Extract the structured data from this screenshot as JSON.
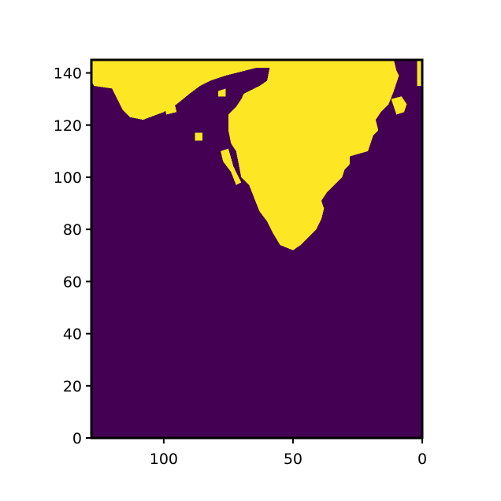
{
  "chart_data": {
    "type": "heatmap",
    "title": "",
    "xlabel": "",
    "ylabel": "",
    "xlim": [
      128,
      0
    ],
    "ylim": [
      0,
      145
    ],
    "x_inverted": true,
    "grid": false,
    "legend": "none",
    "xticks": [
      {
        "value": 100,
        "label": "100"
      },
      {
        "value": 50,
        "label": "50"
      },
      {
        "value": 0,
        "label": "0"
      }
    ],
    "yticks": [
      {
        "value": 0,
        "label": "0"
      },
      {
        "value": 20,
        "label": "20"
      },
      {
        "value": 40,
        "label": "40"
      },
      {
        "value": 60,
        "label": "60"
      },
      {
        "value": 80,
        "label": "80"
      },
      {
        "value": 100,
        "label": "100"
      },
      {
        "value": 120,
        "label": "120"
      },
      {
        "value": 140,
        "label": "140"
      }
    ],
    "colors": {
      "background": "#440154",
      "foreground": "#fde725",
      "axis": "#000000"
    },
    "regions": [
      {
        "name": "mainland",
        "outline": [
          [
            128,
            145
          ],
          [
            128,
            137
          ],
          [
            127,
            135
          ],
          [
            120,
            134
          ],
          [
            118,
            130
          ],
          [
            116,
            126
          ],
          [
            113,
            123
          ],
          [
            108,
            122
          ],
          [
            100,
            125
          ],
          [
            95,
            128
          ],
          [
            90,
            132
          ],
          [
            86,
            135
          ],
          [
            82,
            137
          ],
          [
            76,
            139
          ],
          [
            72,
            140
          ],
          [
            68,
            141
          ],
          [
            64,
            142
          ],
          [
            59,
            142
          ],
          [
            60,
            137
          ],
          [
            63,
            135
          ],
          [
            69,
            132
          ],
          [
            70,
            130
          ],
          [
            72,
            127
          ],
          [
            75,
            124
          ],
          [
            75,
            118
          ],
          [
            74,
            113
          ],
          [
            72,
            110
          ],
          [
            71,
            105
          ],
          [
            70,
            100
          ],
          [
            67,
            97
          ],
          [
            65,
            92
          ],
          [
            63,
            87
          ],
          [
            60,
            83
          ],
          [
            58,
            79
          ],
          [
            55,
            74
          ],
          [
            50,
            72
          ],
          [
            47,
            74
          ],
          [
            44,
            77
          ],
          [
            41,
            80
          ],
          [
            39,
            84
          ],
          [
            38,
            88
          ],
          [
            39,
            91
          ],
          [
            37,
            94
          ],
          [
            34,
            97
          ],
          [
            31,
            100
          ],
          [
            30,
            103
          ],
          [
            28,
            105
          ],
          [
            28,
            108
          ],
          [
            21,
            110
          ],
          [
            20,
            113
          ],
          [
            19,
            116
          ],
          [
            17,
            118
          ],
          [
            18,
            122
          ],
          [
            16,
            125
          ],
          [
            13,
            128
          ],
          [
            11,
            133
          ],
          [
            10,
            136
          ],
          [
            9,
            139
          ],
          [
            10,
            141
          ],
          [
            11,
            145
          ]
        ]
      },
      {
        "name": "upper-left-islands",
        "outline": [
          [
            124,
            138
          ],
          [
            121,
            139
          ],
          [
            120,
            136
          ],
          [
            123,
            135
          ]
        ]
      },
      {
        "name": "west-coast-patch",
        "outline": [
          [
            100,
            128
          ],
          [
            96,
            129
          ],
          [
            95,
            125
          ],
          [
            99,
            124
          ]
        ]
      },
      {
        "name": "small-island-a",
        "outline": [
          [
            88,
            117
          ],
          [
            85,
            117
          ],
          [
            85,
            114
          ],
          [
            88,
            114
          ]
        ]
      },
      {
        "name": "small-island-b",
        "outline": [
          [
            79,
            133
          ],
          [
            76,
            134
          ],
          [
            76,
            131
          ],
          [
            79,
            131
          ]
        ]
      },
      {
        "name": "spine-islands",
        "outline": [
          [
            78,
            110
          ],
          [
            75,
            111
          ],
          [
            73,
            104
          ],
          [
            70,
            98
          ],
          [
            72,
            97
          ],
          [
            74,
            102
          ],
          [
            77,
            106
          ]
        ]
      },
      {
        "name": "top-island",
        "outline": [
          [
            70,
            146
          ],
          [
            65,
            146
          ],
          [
            65,
            142
          ],
          [
            70,
            142
          ]
        ]
      },
      {
        "name": "east-coast-islands",
        "outline": [
          [
            12,
            130
          ],
          [
            8,
            131
          ],
          [
            6,
            128
          ],
          [
            7,
            125
          ],
          [
            10,
            124
          ]
        ]
      },
      {
        "name": "east-strip",
        "outline": [
          [
            2,
            145
          ],
          [
            0,
            145
          ],
          [
            0,
            135
          ],
          [
            2,
            135
          ]
        ]
      }
    ]
  }
}
